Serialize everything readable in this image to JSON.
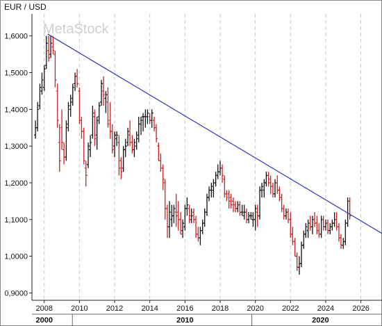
{
  "chart_data": {
    "type": "ohlc",
    "title": "EUR / USD",
    "watermark": "MetaStock",
    "ylim": [
      0.88,
      1.66
    ],
    "xlim": [
      2007.3,
      2027.2
    ],
    "yticks": [
      {
        "v": 0.9,
        "label": "0,9000"
      },
      {
        "v": 1.0,
        "label": "1,0000"
      },
      {
        "v": 1.1,
        "label": "1,1000"
      },
      {
        "v": 1.2,
        "label": "1,2000"
      },
      {
        "v": 1.3,
        "label": "1,3000"
      },
      {
        "v": 1.4,
        "label": "1,4000"
      },
      {
        "v": 1.5,
        "label": "1,5000"
      },
      {
        "v": 1.6,
        "label": "1,6000"
      }
    ],
    "xticks": [
      {
        "v": 2008,
        "label": "2008"
      },
      {
        "v": 2010,
        "label": "2010"
      },
      {
        "v": 2012,
        "label": "2012"
      },
      {
        "v": 2014,
        "label": "2014"
      },
      {
        "v": 2016,
        "label": "2016"
      },
      {
        "v": 2018,
        "label": "2018"
      },
      {
        "v": 2020,
        "label": "2020"
      },
      {
        "v": 2022,
        "label": "2022"
      },
      {
        "v": 2024,
        "label": "2024"
      },
      {
        "v": 2026,
        "label": "2026"
      }
    ],
    "decade_labels": [
      {
        "v": 2008,
        "label": "2000"
      },
      {
        "v": 2016,
        "label": "2010"
      },
      {
        "v": 2023.7,
        "label": "2020"
      }
    ],
    "decade_separators": [
      2009.6,
      2019.8
    ],
    "grid": "vertical-dashed",
    "trendline": {
      "x": [
        2008.2,
        2027.2
      ],
      "y": [
        1.605,
        1.062
      ],
      "color": "#3333bb"
    },
    "colors": {
      "up": "#111111",
      "down": "#cc2222"
    },
    "bars": [
      [
        2007.5,
        1.33,
        1.37,
        1.32,
        1.35
      ],
      [
        2007.62,
        1.35,
        1.42,
        1.34,
        1.4
      ],
      [
        2007.75,
        1.41,
        1.47,
        1.4,
        1.46
      ],
      [
        2007.87,
        1.45,
        1.5,
        1.44,
        1.48
      ],
      [
        2008.0,
        1.46,
        1.52,
        1.45,
        1.51
      ],
      [
        2008.12,
        1.52,
        1.6,
        1.51,
        1.58
      ],
      [
        2008.25,
        1.56,
        1.6,
        1.53,
        1.54
      ],
      [
        2008.37,
        1.55,
        1.6,
        1.54,
        1.58
      ],
      [
        2008.5,
        1.57,
        1.6,
        1.55,
        1.56
      ],
      [
        2008.62,
        1.55,
        1.56,
        1.46,
        1.48
      ],
      [
        2008.75,
        1.45,
        1.47,
        1.35,
        1.37
      ],
      [
        2008.87,
        1.31,
        1.36,
        1.23,
        1.26
      ],
      [
        2009.0,
        1.35,
        1.4,
        1.29,
        1.31
      ],
      [
        2009.12,
        1.29,
        1.31,
        1.25,
        1.27
      ],
      [
        2009.25,
        1.27,
        1.37,
        1.26,
        1.35
      ],
      [
        2009.37,
        1.36,
        1.42,
        1.34,
        1.41
      ],
      [
        2009.5,
        1.4,
        1.44,
        1.38,
        1.42
      ],
      [
        2009.62,
        1.43,
        1.47,
        1.41,
        1.46
      ],
      [
        2009.75,
        1.47,
        1.5,
        1.45,
        1.49
      ],
      [
        2009.87,
        1.49,
        1.51,
        1.46,
        1.47
      ],
      [
        2010.0,
        1.45,
        1.46,
        1.36,
        1.37
      ],
      [
        2010.12,
        1.37,
        1.38,
        1.32,
        1.34
      ],
      [
        2010.25,
        1.34,
        1.35,
        1.25,
        1.26
      ],
      [
        2010.37,
        1.24,
        1.26,
        1.19,
        1.22
      ],
      [
        2010.5,
        1.25,
        1.31,
        1.24,
        1.3
      ],
      [
        2010.62,
        1.29,
        1.33,
        1.27,
        1.31
      ],
      [
        2010.75,
        1.33,
        1.41,
        1.32,
        1.39
      ],
      [
        2010.87,
        1.38,
        1.4,
        1.3,
        1.32
      ],
      [
        2011.0,
        1.33,
        1.38,
        1.29,
        1.37
      ],
      [
        2011.12,
        1.38,
        1.42,
        1.36,
        1.41
      ],
      [
        2011.25,
        1.42,
        1.48,
        1.41,
        1.47
      ],
      [
        2011.37,
        1.45,
        1.49,
        1.41,
        1.44
      ],
      [
        2011.5,
        1.43,
        1.45,
        1.39,
        1.44
      ],
      [
        2011.62,
        1.42,
        1.46,
        1.35,
        1.36
      ],
      [
        2011.75,
        1.37,
        1.42,
        1.32,
        1.34
      ],
      [
        2011.87,
        1.34,
        1.36,
        1.28,
        1.29
      ],
      [
        2012.0,
        1.3,
        1.34,
        1.27,
        1.33
      ],
      [
        2012.12,
        1.32,
        1.34,
        1.3,
        1.33
      ],
      [
        2012.25,
        1.31,
        1.33,
        1.22,
        1.24
      ],
      [
        2012.37,
        1.26,
        1.27,
        1.21,
        1.23
      ],
      [
        2012.5,
        1.24,
        1.3,
        1.23,
        1.29
      ],
      [
        2012.62,
        1.29,
        1.32,
        1.27,
        1.3
      ],
      [
        2012.75,
        1.31,
        1.35,
        1.3,
        1.34
      ],
      [
        2012.87,
        1.33,
        1.37,
        1.3,
        1.31
      ],
      [
        2013.0,
        1.31,
        1.33,
        1.28,
        1.29
      ],
      [
        2013.12,
        1.29,
        1.32,
        1.27,
        1.31
      ],
      [
        2013.25,
        1.3,
        1.34,
        1.29,
        1.32
      ],
      [
        2013.37,
        1.33,
        1.38,
        1.31,
        1.36
      ],
      [
        2013.5,
        1.36,
        1.38,
        1.33,
        1.37
      ],
      [
        2013.62,
        1.38,
        1.39,
        1.34,
        1.38
      ],
      [
        2013.75,
        1.38,
        1.4,
        1.35,
        1.38
      ],
      [
        2013.87,
        1.38,
        1.4,
        1.36,
        1.39
      ],
      [
        2014.0,
        1.38,
        1.39,
        1.36,
        1.37
      ],
      [
        2014.12,
        1.37,
        1.4,
        1.35,
        1.39
      ],
      [
        2014.25,
        1.37,
        1.38,
        1.34,
        1.35
      ],
      [
        2014.37,
        1.35,
        1.36,
        1.31,
        1.32
      ],
      [
        2014.5,
        1.3,
        1.31,
        1.26,
        1.26
      ],
      [
        2014.62,
        1.26,
        1.28,
        1.23,
        1.24
      ],
      [
        2014.75,
        1.24,
        1.25,
        1.18,
        1.21
      ],
      [
        2014.87,
        1.2,
        1.21,
        1.1,
        1.13
      ],
      [
        2015.0,
        1.13,
        1.14,
        1.05,
        1.08
      ],
      [
        2015.12,
        1.08,
        1.15,
        1.05,
        1.12
      ],
      [
        2015.25,
        1.1,
        1.14,
        1.08,
        1.11
      ],
      [
        2015.37,
        1.11,
        1.14,
        1.09,
        1.13
      ],
      [
        2015.5,
        1.12,
        1.17,
        1.08,
        1.11
      ],
      [
        2015.62,
        1.12,
        1.15,
        1.07,
        1.1
      ],
      [
        2015.75,
        1.1,
        1.12,
        1.06,
        1.06
      ],
      [
        2015.87,
        1.07,
        1.1,
        1.05,
        1.09
      ],
      [
        2016.0,
        1.08,
        1.14,
        1.07,
        1.13
      ],
      [
        2016.12,
        1.13,
        1.16,
        1.11,
        1.14
      ],
      [
        2016.25,
        1.13,
        1.14,
        1.09,
        1.11
      ],
      [
        2016.37,
        1.1,
        1.13,
        1.09,
        1.11
      ],
      [
        2016.5,
        1.12,
        1.13,
        1.09,
        1.1
      ],
      [
        2016.62,
        1.1,
        1.11,
        1.05,
        1.06
      ],
      [
        2016.75,
        1.06,
        1.08,
        1.04,
        1.05
      ],
      [
        2016.87,
        1.05,
        1.08,
        1.03,
        1.07
      ],
      [
        2017.0,
        1.07,
        1.1,
        1.06,
        1.09
      ],
      [
        2017.12,
        1.09,
        1.13,
        1.08,
        1.12
      ],
      [
        2017.25,
        1.12,
        1.17,
        1.11,
        1.16
      ],
      [
        2017.37,
        1.16,
        1.19,
        1.15,
        1.18
      ],
      [
        2017.5,
        1.18,
        1.2,
        1.16,
        1.19
      ],
      [
        2017.62,
        1.18,
        1.21,
        1.16,
        1.2
      ],
      [
        2017.75,
        1.2,
        1.23,
        1.19,
        1.22
      ],
      [
        2017.87,
        1.22,
        1.25,
        1.21,
        1.23
      ],
      [
        2018.0,
        1.23,
        1.26,
        1.22,
        1.24
      ],
      [
        2018.12,
        1.24,
        1.25,
        1.2,
        1.22
      ],
      [
        2018.25,
        1.21,
        1.22,
        1.16,
        1.17
      ],
      [
        2018.37,
        1.17,
        1.18,
        1.15,
        1.16
      ],
      [
        2018.5,
        1.17,
        1.18,
        1.13,
        1.15
      ],
      [
        2018.62,
        1.16,
        1.17,
        1.13,
        1.14
      ],
      [
        2018.75,
        1.15,
        1.16,
        1.12,
        1.14
      ],
      [
        2018.87,
        1.14,
        1.15,
        1.12,
        1.13
      ],
      [
        2019.0,
        1.13,
        1.15,
        1.12,
        1.14
      ],
      [
        2019.12,
        1.14,
        1.15,
        1.11,
        1.12
      ],
      [
        2019.25,
        1.12,
        1.14,
        1.11,
        1.12
      ],
      [
        2019.37,
        1.11,
        1.14,
        1.1,
        1.12
      ],
      [
        2019.5,
        1.12,
        1.13,
        1.09,
        1.1
      ],
      [
        2019.62,
        1.1,
        1.12,
        1.09,
        1.11
      ],
      [
        2019.75,
        1.11,
        1.12,
        1.1,
        1.11
      ],
      [
        2019.87,
        1.1,
        1.12,
        1.08,
        1.1
      ],
      [
        2020.0,
        1.1,
        1.14,
        1.07,
        1.13
      ],
      [
        2020.12,
        1.12,
        1.14,
        1.08,
        1.11
      ],
      [
        2020.25,
        1.11,
        1.19,
        1.1,
        1.18
      ],
      [
        2020.37,
        1.18,
        1.2,
        1.16,
        1.19
      ],
      [
        2020.5,
        1.18,
        1.21,
        1.16,
        1.2
      ],
      [
        2020.62,
        1.2,
        1.23,
        1.19,
        1.22
      ],
      [
        2020.75,
        1.22,
        1.23,
        1.19,
        1.21
      ],
      [
        2020.87,
        1.2,
        1.22,
        1.17,
        1.19
      ],
      [
        2021.0,
        1.19,
        1.2,
        1.16,
        1.17
      ],
      [
        2021.12,
        1.17,
        1.21,
        1.16,
        1.2
      ],
      [
        2021.25,
        1.2,
        1.22,
        1.17,
        1.18
      ],
      [
        2021.37,
        1.18,
        1.19,
        1.15,
        1.16
      ],
      [
        2021.5,
        1.16,
        1.17,
        1.12,
        1.13
      ],
      [
        2021.62,
        1.13,
        1.14,
        1.1,
        1.11
      ],
      [
        2021.75,
        1.11,
        1.13,
        1.1,
        1.12
      ],
      [
        2021.87,
        1.12,
        1.13,
        1.09,
        1.1
      ],
      [
        2022.0,
        1.1,
        1.12,
        1.05,
        1.06
      ],
      [
        2022.12,
        1.06,
        1.08,
        1.03,
        1.04
      ],
      [
        2022.25,
        1.04,
        1.05,
        1.0,
        1.0
      ],
      [
        2022.37,
        1.0,
        1.01,
        0.96,
        0.97
      ],
      [
        2022.5,
        0.97,
        1.0,
        0.95,
        0.98
      ],
      [
        2022.62,
        0.98,
        1.04,
        0.97,
        1.03
      ],
      [
        2022.75,
        1.03,
        1.07,
        1.02,
        1.06
      ],
      [
        2022.87,
        1.06,
        1.09,
        1.05,
        1.08
      ],
      [
        2023.0,
        1.07,
        1.1,
        1.05,
        1.09
      ],
      [
        2023.12,
        1.09,
        1.11,
        1.07,
        1.08
      ],
      [
        2023.25,
        1.08,
        1.11,
        1.06,
        1.1
      ],
      [
        2023.37,
        1.1,
        1.12,
        1.08,
        1.09
      ],
      [
        2023.5,
        1.09,
        1.11,
        1.06,
        1.07
      ],
      [
        2023.62,
        1.07,
        1.09,
        1.05,
        1.06
      ],
      [
        2023.75,
        1.06,
        1.11,
        1.05,
        1.1
      ],
      [
        2023.87,
        1.1,
        1.11,
        1.07,
        1.08
      ],
      [
        2024.0,
        1.08,
        1.1,
        1.07,
        1.09
      ],
      [
        2024.12,
        1.09,
        1.1,
        1.06,
        1.07
      ],
      [
        2024.25,
        1.07,
        1.09,
        1.06,
        1.08
      ],
      [
        2024.37,
        1.08,
        1.1,
        1.07,
        1.09
      ],
      [
        2024.5,
        1.09,
        1.12,
        1.08,
        1.1
      ],
      [
        2024.62,
        1.1,
        1.12,
        1.07,
        1.08
      ],
      [
        2024.75,
        1.08,
        1.09,
        1.04,
        1.05
      ],
      [
        2024.87,
        1.05,
        1.06,
        1.02,
        1.03
      ],
      [
        2025.0,
        1.03,
        1.05,
        1.02,
        1.04
      ],
      [
        2025.12,
        1.04,
        1.1,
        1.03,
        1.09
      ],
      [
        2025.25,
        1.09,
        1.16,
        1.08,
        1.15
      ],
      [
        2025.37,
        1.15,
        1.16,
        1.1,
        1.11
      ]
    ]
  }
}
